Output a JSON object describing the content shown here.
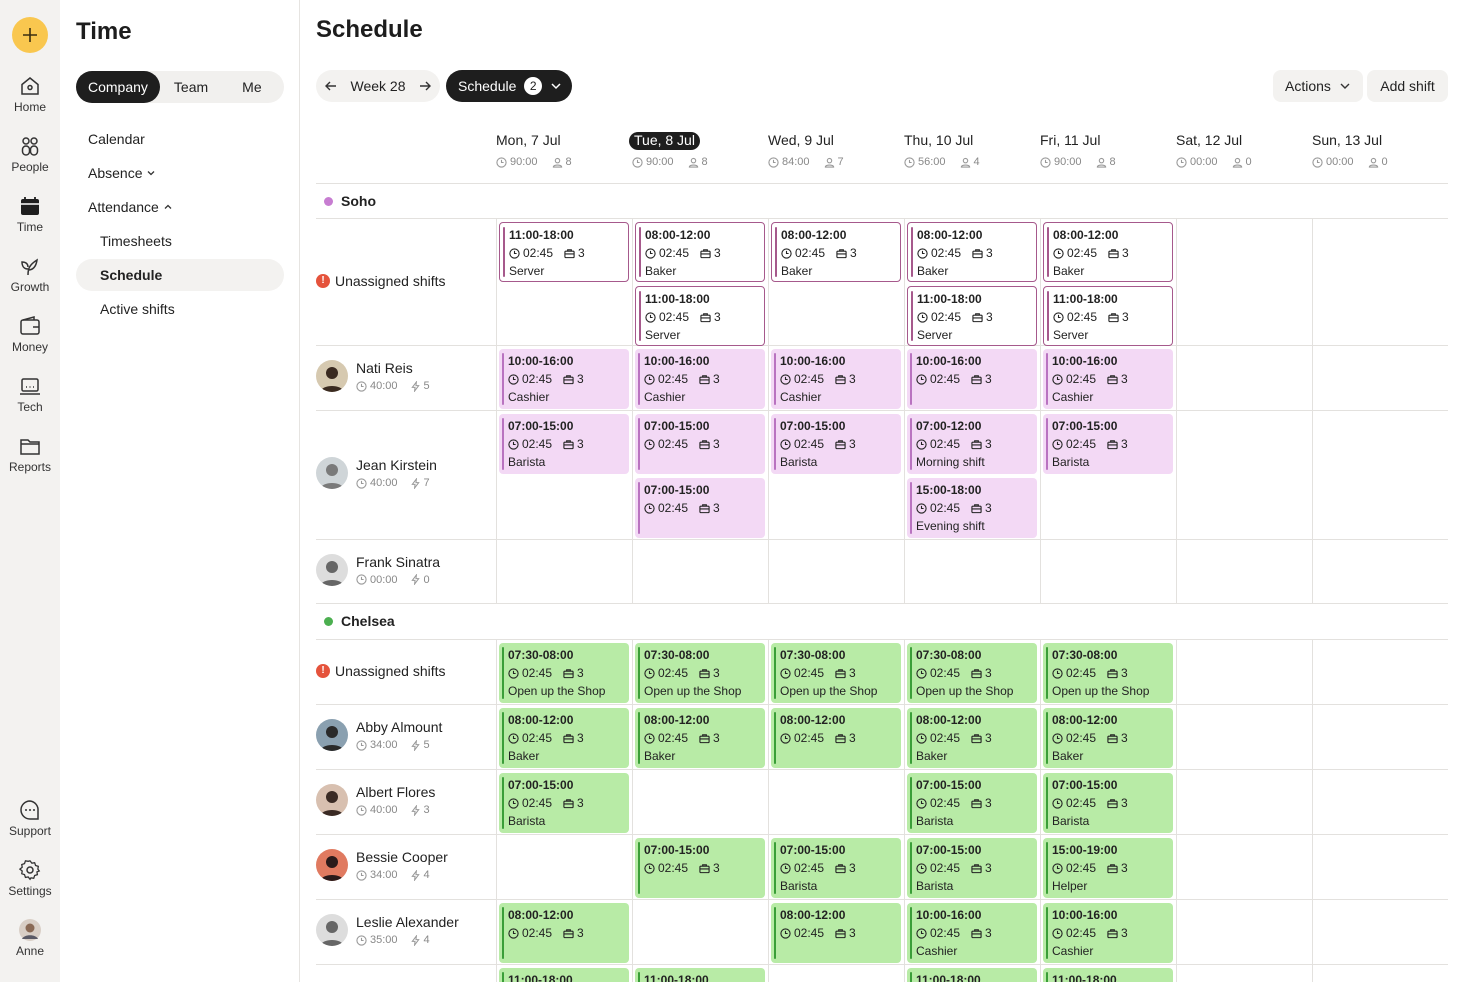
{
  "rail": {
    "items": [
      {
        "label": "Home",
        "icon": "home-icon"
      },
      {
        "label": "People",
        "icon": "people-icon"
      },
      {
        "label": "Time",
        "icon": "calendar-icon"
      },
      {
        "label": "Growth",
        "icon": "sprout-icon"
      },
      {
        "label": "Money",
        "icon": "wallet-icon"
      },
      {
        "label": "Tech",
        "icon": "laptop-icon"
      },
      {
        "label": "Reports",
        "icon": "folder-icon"
      }
    ],
    "bottom": [
      {
        "label": "Support",
        "icon": "chat-icon"
      },
      {
        "label": "Settings",
        "icon": "gear-icon"
      },
      {
        "label": "Anne",
        "icon": "avatar"
      }
    ],
    "accent": "#f9c74f"
  },
  "panel": {
    "title": "Time",
    "segments": [
      "Company",
      "Team",
      "Me"
    ],
    "active_segment": "Company",
    "nav": {
      "calendar": "Calendar",
      "absence": "Absence",
      "attendance": "Attendance",
      "timesheets": "Timesheets",
      "schedule": "Schedule",
      "active_shifts": "Active shifts"
    }
  },
  "main": {
    "title": "Schedule",
    "week_label": "Week 28",
    "schedule_label": "Schedule",
    "schedule_count": "2",
    "actions_label": "Actions",
    "add_shift_label": "Add shift"
  },
  "days": [
    {
      "name": "Mon, 7 Jul",
      "hours": "90:00",
      "people": "8",
      "today": false
    },
    {
      "name": "Tue, 8 Jul",
      "hours": "90:00",
      "people": "8",
      "today": true
    },
    {
      "name": "Wed, 9 Jul",
      "hours": "84:00",
      "people": "7",
      "today": false
    },
    {
      "name": "Thu, 10 Jul",
      "hours": "56:00",
      "people": "4",
      "today": false
    },
    {
      "name": "Fri, 11 Jul",
      "hours": "90:00",
      "people": "8",
      "today": false
    },
    {
      "name": "Sat, 12 Jul",
      "hours": "00:00",
      "people": "0",
      "today": false
    },
    {
      "name": "Sun, 13 Jul",
      "hours": "00:00",
      "people": "0",
      "today": false
    }
  ],
  "locations": [
    {
      "name": "Soho",
      "color": "#c77dd1"
    },
    {
      "name": "Chelsea",
      "color": "#4caf50"
    }
  ],
  "rows": [
    {
      "label": "Unassigned shifts",
      "type": "unassigned"
    },
    {
      "label": "Nati Reis",
      "hours": "40:00",
      "count": "5"
    },
    {
      "label": "Jean Kirstein",
      "hours": "40:00",
      "count": "7"
    },
    {
      "label": "Frank Sinatra",
      "hours": "00:00",
      "count": "0"
    },
    {
      "label": "Unassigned shifts",
      "type": "unassigned"
    },
    {
      "label": "Abby Almount",
      "hours": "34:00",
      "count": "5"
    },
    {
      "label": "Albert Flores",
      "hours": "40:00",
      "count": "3"
    },
    {
      "label": "Bessie Cooper",
      "hours": "34:00",
      "count": "4"
    },
    {
      "label": "Leslie Alexander",
      "hours": "35:00",
      "count": "4"
    }
  ],
  "shifts": [
    {
      "row": 0,
      "day": 0,
      "slot": 0,
      "style": "open",
      "time": "11:00-18:00",
      "dur": "02:45",
      "n": "3",
      "role": "Server"
    },
    {
      "row": 0,
      "day": 1,
      "slot": 0,
      "style": "open",
      "time": "08:00-12:00",
      "dur": "02:45",
      "n": "3",
      "role": "Baker"
    },
    {
      "row": 0,
      "day": 1,
      "slot": 1,
      "style": "open",
      "time": "11:00-18:00",
      "dur": "02:45",
      "n": "3",
      "role": "Server"
    },
    {
      "row": 0,
      "day": 2,
      "slot": 0,
      "style": "open",
      "time": "08:00-12:00",
      "dur": "02:45",
      "n": "3",
      "role": "Baker"
    },
    {
      "row": 0,
      "day": 3,
      "slot": 0,
      "style": "open",
      "time": "08:00-12:00",
      "dur": "02:45",
      "n": "3",
      "role": "Baker"
    },
    {
      "row": 0,
      "day": 3,
      "slot": 1,
      "style": "open",
      "time": "11:00-18:00",
      "dur": "02:45",
      "n": "3",
      "role": "Server"
    },
    {
      "row": 0,
      "day": 4,
      "slot": 0,
      "style": "open",
      "time": "08:00-12:00",
      "dur": "02:45",
      "n": "3",
      "role": "Baker"
    },
    {
      "row": 0,
      "day": 4,
      "slot": 1,
      "style": "open",
      "time": "11:00-18:00",
      "dur": "02:45",
      "n": "3",
      "role": "Server"
    },
    {
      "row": 1,
      "day": 0,
      "slot": 0,
      "style": "pink",
      "time": "10:00-16:00",
      "dur": "02:45",
      "n": "3",
      "role": "Cashier"
    },
    {
      "row": 1,
      "day": 1,
      "slot": 0,
      "style": "pink",
      "time": "10:00-16:00",
      "dur": "02:45",
      "n": "3",
      "role": "Cashier"
    },
    {
      "row": 1,
      "day": 2,
      "slot": 0,
      "style": "pink",
      "time": "10:00-16:00",
      "dur": "02:45",
      "n": "3",
      "role": "Cashier"
    },
    {
      "row": 1,
      "day": 3,
      "slot": 0,
      "style": "pink",
      "time": "10:00-16:00",
      "dur": "02:45",
      "n": "3",
      "role": ""
    },
    {
      "row": 1,
      "day": 4,
      "slot": 0,
      "style": "pink",
      "time": "10:00-16:00",
      "dur": "02:45",
      "n": "3",
      "role": "Cashier"
    },
    {
      "row": 2,
      "day": 0,
      "slot": 0,
      "style": "pink",
      "time": "07:00-15:00",
      "dur": "02:45",
      "n": "3",
      "role": "Barista"
    },
    {
      "row": 2,
      "day": 1,
      "slot": 0,
      "style": "pink",
      "time": "07:00-15:00",
      "dur": "02:45",
      "n": "3",
      "role": ""
    },
    {
      "row": 2,
      "day": 1,
      "slot": 1,
      "style": "pink",
      "time": "07:00-15:00",
      "dur": "02:45",
      "n": "3",
      "role": ""
    },
    {
      "row": 2,
      "day": 2,
      "slot": 0,
      "style": "pink",
      "time": "07:00-15:00",
      "dur": "02:45",
      "n": "3",
      "role": "Barista"
    },
    {
      "row": 2,
      "day": 3,
      "slot": 0,
      "style": "pink",
      "time": "07:00-12:00",
      "dur": "02:45",
      "n": "3",
      "role": "Morning shift"
    },
    {
      "row": 2,
      "day": 3,
      "slot": 1,
      "style": "pink",
      "time": "15:00-18:00",
      "dur": "02:45",
      "n": "3",
      "role": "Evening shift"
    },
    {
      "row": 2,
      "day": 4,
      "slot": 0,
      "style": "pink",
      "time": "07:00-15:00",
      "dur": "02:45",
      "n": "3",
      "role": "Barista"
    },
    {
      "row": 4,
      "day": 0,
      "slot": 0,
      "style": "green",
      "time": "07:30-08:00",
      "dur": "02:45",
      "n": "3",
      "role": "Open up the Shop"
    },
    {
      "row": 4,
      "day": 1,
      "slot": 0,
      "style": "green",
      "time": "07:30-08:00",
      "dur": "02:45",
      "n": "3",
      "role": "Open up the Shop"
    },
    {
      "row": 4,
      "day": 2,
      "slot": 0,
      "style": "green",
      "time": "07:30-08:00",
      "dur": "02:45",
      "n": "3",
      "role": "Open up the Shop"
    },
    {
      "row": 4,
      "day": 3,
      "slot": 0,
      "style": "green",
      "time": "07:30-08:00",
      "dur": "02:45",
      "n": "3",
      "role": "Open up the Shop"
    },
    {
      "row": 4,
      "day": 4,
      "slot": 0,
      "style": "green",
      "time": "07:30-08:00",
      "dur": "02:45",
      "n": "3",
      "role": "Open up the Shop"
    },
    {
      "row": 5,
      "day": 0,
      "slot": 0,
      "style": "green",
      "time": "08:00-12:00",
      "dur": "02:45",
      "n": "3",
      "role": "Baker"
    },
    {
      "row": 5,
      "day": 1,
      "slot": 0,
      "style": "green",
      "time": "08:00-12:00",
      "dur": "02:45",
      "n": "3",
      "role": "Baker"
    },
    {
      "row": 5,
      "day": 2,
      "slot": 0,
      "style": "green",
      "time": "08:00-12:00",
      "dur": "02:45",
      "n": "3",
      "role": ""
    },
    {
      "row": 5,
      "day": 3,
      "slot": 0,
      "style": "green",
      "time": "08:00-12:00",
      "dur": "02:45",
      "n": "3",
      "role": "Baker"
    },
    {
      "row": 5,
      "day": 4,
      "slot": 0,
      "style": "green",
      "time": "08:00-12:00",
      "dur": "02:45",
      "n": "3",
      "role": "Baker"
    },
    {
      "row": 6,
      "day": 0,
      "slot": 0,
      "style": "green",
      "time": "07:00-15:00",
      "dur": "02:45",
      "n": "3",
      "role": "Barista"
    },
    {
      "row": 6,
      "day": 3,
      "slot": 0,
      "style": "green",
      "time": "07:00-15:00",
      "dur": "02:45",
      "n": "3",
      "role": "Barista"
    },
    {
      "row": 6,
      "day": 4,
      "slot": 0,
      "style": "green",
      "time": "07:00-15:00",
      "dur": "02:45",
      "n": "3",
      "role": "Barista"
    },
    {
      "row": 7,
      "day": 1,
      "slot": 0,
      "style": "green",
      "time": "07:00-15:00",
      "dur": "02:45",
      "n": "3",
      "role": ""
    },
    {
      "row": 7,
      "day": 2,
      "slot": 0,
      "style": "green",
      "time": "07:00-15:00",
      "dur": "02:45",
      "n": "3",
      "role": "Barista"
    },
    {
      "row": 7,
      "day": 3,
      "slot": 0,
      "style": "green",
      "time": "07:00-15:00",
      "dur": "02:45",
      "n": "3",
      "role": "Barista"
    },
    {
      "row": 7,
      "day": 4,
      "slot": 0,
      "style": "green",
      "time": "15:00-19:00",
      "dur": "02:45",
      "n": "3",
      "role": "Helper"
    },
    {
      "row": 8,
      "day": 0,
      "slot": 0,
      "style": "green",
      "time": "08:00-12:00",
      "dur": "02:45",
      "n": "3",
      "role": ""
    },
    {
      "row": 8,
      "day": 2,
      "slot": 0,
      "style": "green",
      "time": "08:00-12:00",
      "dur": "02:45",
      "n": "3",
      "role": ""
    },
    {
      "row": 8,
      "day": 3,
      "slot": 0,
      "style": "green",
      "time": "10:00-16:00",
      "dur": "02:45",
      "n": "3",
      "role": "Cashier"
    },
    {
      "row": 8,
      "day": 4,
      "slot": 0,
      "style": "green",
      "time": "10:00-16:00",
      "dur": "02:45",
      "n": "3",
      "role": "Cashier"
    },
    {
      "row": 9,
      "day": 0,
      "slot": 0,
      "style": "green",
      "time": "11:00-18:00",
      "dur": "",
      "n": "",
      "role": ""
    },
    {
      "row": 9,
      "day": 1,
      "slot": 0,
      "style": "green",
      "time": "11:00-18:00",
      "dur": "",
      "n": "",
      "role": ""
    },
    {
      "row": 9,
      "day": 3,
      "slot": 0,
      "style": "green",
      "time": "11:00-18:00",
      "dur": "",
      "n": "",
      "role": ""
    },
    {
      "row": 9,
      "day": 4,
      "slot": 0,
      "style": "green",
      "time": "11:00-18:00",
      "dur": "",
      "n": "",
      "role": ""
    }
  ]
}
